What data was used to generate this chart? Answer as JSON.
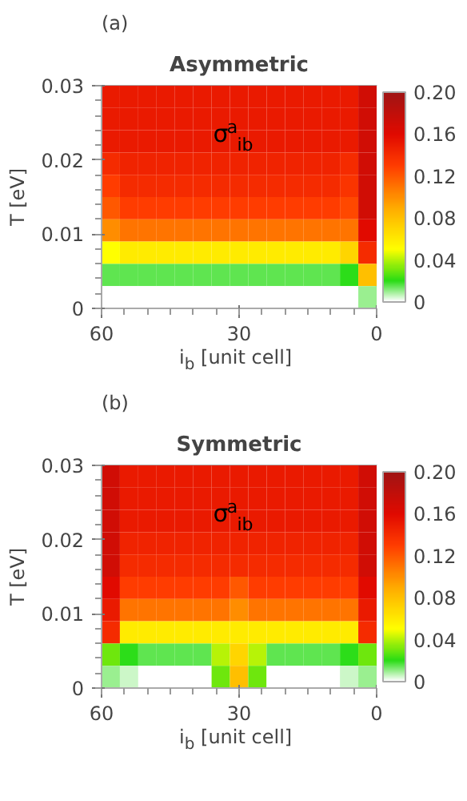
{
  "chart_data": [
    {
      "type": "heatmap",
      "title": "Asymmetric",
      "annotations": [
        "(a)",
        "σ$^{a}$$_{ib}$"
      ],
      "xlabel": "i$_{b}$ [unit cell]",
      "ylabel": "T [eV]",
      "x": [
        58,
        54,
        50,
        46,
        42,
        38,
        34,
        30,
        26,
        22,
        18,
        14,
        10,
        6,
        2
      ],
      "y": [
        0.0285,
        0.0255,
        0.0225,
        0.0195,
        0.0165,
        0.0135,
        0.0105,
        0.0075,
        0.0045,
        0.0015
      ],
      "xlim": [
        60,
        0
      ],
      "xticks": [
        60,
        30,
        0
      ],
      "ylim": [
        0,
        0.03
      ],
      "yticks": [
        0,
        0.01,
        0.02,
        0.03
      ],
      "clim": [
        0,
        0.2
      ],
      "cticks": [
        0,
        0.04,
        0.08,
        0.12,
        0.16,
        {
          "value": 0.2,
          "label": "0.20"
        }
      ],
      "cells": [
        [
          0.15,
          0.15,
          0.15,
          0.15,
          0.15,
          0.15,
          0.15,
          0.15,
          0.15,
          0.15,
          0.15,
          0.15,
          0.15,
          0.15,
          0.17
        ],
        [
          0.15,
          0.15,
          0.15,
          0.15,
          0.15,
          0.15,
          0.15,
          0.15,
          0.15,
          0.15,
          0.15,
          0.15,
          0.15,
          0.15,
          0.17
        ],
        [
          0.15,
          0.15,
          0.15,
          0.15,
          0.15,
          0.15,
          0.15,
          0.15,
          0.15,
          0.15,
          0.15,
          0.15,
          0.15,
          0.15,
          0.17
        ],
        [
          0.14,
          0.145,
          0.145,
          0.145,
          0.145,
          0.145,
          0.145,
          0.145,
          0.145,
          0.145,
          0.145,
          0.145,
          0.145,
          0.14,
          0.17
        ],
        [
          0.13,
          0.14,
          0.14,
          0.14,
          0.14,
          0.14,
          0.14,
          0.14,
          0.14,
          0.14,
          0.14,
          0.14,
          0.14,
          0.135,
          0.17
        ],
        [
          0.12,
          0.13,
          0.13,
          0.13,
          0.13,
          0.13,
          0.13,
          0.13,
          0.13,
          0.13,
          0.13,
          0.13,
          0.13,
          0.125,
          0.17
        ],
        [
          0.1,
          0.11,
          0.11,
          0.11,
          0.11,
          0.11,
          0.11,
          0.11,
          0.11,
          0.11,
          0.11,
          0.11,
          0.11,
          0.11,
          0.16
        ],
        [
          0.05,
          0.06,
          0.06,
          0.06,
          0.06,
          0.06,
          0.06,
          0.06,
          0.06,
          0.06,
          0.06,
          0.06,
          0.06,
          0.07,
          0.14
        ],
        [
          0.015,
          0.015,
          0.015,
          0.015,
          0.015,
          0.015,
          0.015,
          0.015,
          0.015,
          0.015,
          0.015,
          0.015,
          0.015,
          0.02,
          0.08
        ],
        [
          0,
          0,
          0,
          0,
          0,
          0,
          0,
          0,
          0,
          0,
          0,
          0,
          0,
          0,
          0.01
        ]
      ]
    },
    {
      "type": "heatmap",
      "title": "Symmetric",
      "annotations": [
        "(b)",
        "σ$^{a}$$_{ib}$"
      ],
      "xlabel": "i$_{b}$ [unit cell]",
      "ylabel": "T [eV]",
      "x": [
        58,
        54,
        50,
        46,
        42,
        38,
        34,
        30,
        26,
        22,
        18,
        14,
        10,
        6,
        2
      ],
      "y": [
        0.0285,
        0.0255,
        0.0225,
        0.0195,
        0.0165,
        0.0135,
        0.0105,
        0.0075,
        0.0045,
        0.0015
      ],
      "xlim": [
        60,
        0
      ],
      "xticks": [
        60,
        30,
        0
      ],
      "ylim": [
        0,
        0.03
      ],
      "yticks": [
        0,
        0.01,
        0.02,
        0.03
      ],
      "clim": [
        0,
        0.2
      ],
      "cticks": [
        0,
        0.04,
        0.08,
        0.12,
        0.16,
        {
          "value": 0.2,
          "label": "0.20"
        }
      ],
      "cells": [
        [
          0.17,
          0.15,
          0.15,
          0.15,
          0.15,
          0.15,
          0.15,
          0.15,
          0.15,
          0.15,
          0.15,
          0.15,
          0.15,
          0.15,
          0.17
        ],
        [
          0.17,
          0.15,
          0.15,
          0.15,
          0.15,
          0.15,
          0.15,
          0.15,
          0.15,
          0.15,
          0.15,
          0.15,
          0.15,
          0.15,
          0.17
        ],
        [
          0.17,
          0.15,
          0.15,
          0.15,
          0.15,
          0.15,
          0.15,
          0.15,
          0.15,
          0.15,
          0.15,
          0.15,
          0.15,
          0.15,
          0.17
        ],
        [
          0.17,
          0.145,
          0.145,
          0.145,
          0.145,
          0.145,
          0.145,
          0.145,
          0.145,
          0.145,
          0.145,
          0.145,
          0.145,
          0.145,
          0.17
        ],
        [
          0.17,
          0.14,
          0.14,
          0.14,
          0.14,
          0.14,
          0.14,
          0.14,
          0.14,
          0.14,
          0.14,
          0.14,
          0.14,
          0.14,
          0.17
        ],
        [
          0.16,
          0.13,
          0.13,
          0.13,
          0.13,
          0.13,
          0.13,
          0.12,
          0.13,
          0.13,
          0.13,
          0.13,
          0.13,
          0.13,
          0.16
        ],
        [
          0.15,
          0.11,
          0.11,
          0.11,
          0.11,
          0.11,
          0.11,
          0.1,
          0.11,
          0.11,
          0.11,
          0.11,
          0.11,
          0.11,
          0.15
        ],
        [
          0.14,
          0.06,
          0.06,
          0.06,
          0.06,
          0.06,
          0.06,
          0.06,
          0.06,
          0.06,
          0.06,
          0.06,
          0.06,
          0.06,
          0.14
        ],
        [
          0.03,
          0.02,
          0.015,
          0.015,
          0.015,
          0.015,
          0.04,
          0.07,
          0.04,
          0.015,
          0.015,
          0.015,
          0.015,
          0.02,
          0.03
        ],
        [
          0.01,
          0.005,
          0,
          0,
          0,
          0,
          0.03,
          0.08,
          0.03,
          0,
          0,
          0,
          0,
          0.005,
          0.01
        ]
      ]
    }
  ]
}
